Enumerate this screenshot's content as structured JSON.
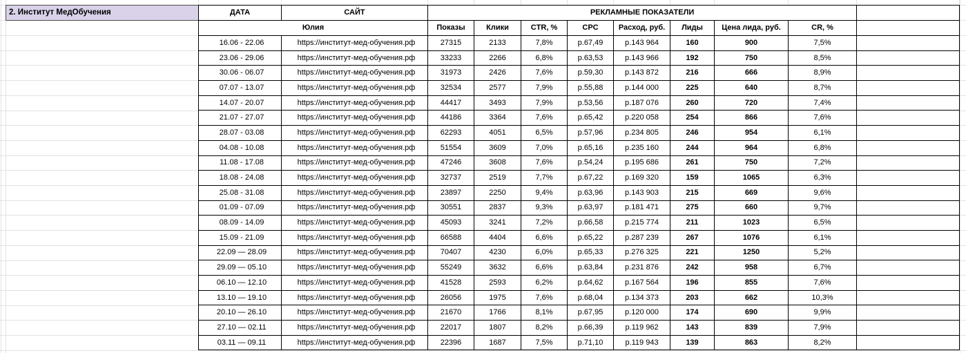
{
  "title_cell": "2. Институт МедОбучения",
  "colors": {
    "accent_purple": "#d9d2e9",
    "header_gray": "#efefef",
    "highlight_green": "#d9ead3",
    "gridline": "#e2e2e2",
    "table_border": "#000000"
  },
  "table": {
    "header_row1": {
      "date": "ДАТА",
      "site": "САЙТ",
      "metrics_group": "РЕКЛАМНЫЕ ПОКАЗАТЕЛИ"
    },
    "header_row2": {
      "manager": "Юлия",
      "columns": [
        "Показы",
        "Клики",
        "CTR, %",
        "CPC",
        "Расход, руб.",
        "Лиды",
        "Цена лида, руб.",
        "CR, %"
      ]
    },
    "rows": [
      {
        "date": "16.06 - 22.06",
        "site": "https://институт-мед-обучения.рф",
        "impressions": "27315",
        "clicks": "2133",
        "ctr": "7,8%",
        "cpc": "р.67,49",
        "spend": "р.143 964",
        "leads": "160",
        "lead_price": "900",
        "cr": "7,5%"
      },
      {
        "date": "23.06 - 29.06",
        "site": "https://институт-мед-обучения.рф",
        "impressions": "33233",
        "clicks": "2266",
        "ctr": "6,8%",
        "cpc": "р.63,53",
        "spend": "р.143 966",
        "leads": "192",
        "lead_price": "750",
        "cr": "8,5%"
      },
      {
        "date": "30.06 - 06.07",
        "site": "https://институт-мед-обучения.рф",
        "impressions": "31973",
        "clicks": "2426",
        "ctr": "7,6%",
        "cpc": "р.59,30",
        "spend": "р.143 872",
        "leads": "216",
        "lead_price": "666",
        "cr": "8,9%"
      },
      {
        "date": "07.07 - 13.07",
        "site": "https://институт-мед-обучения.рф",
        "impressions": "32534",
        "clicks": "2577",
        "ctr": "7,9%",
        "cpc": "р.55,88",
        "spend": "р.144 000",
        "leads": "225",
        "lead_price": "640",
        "cr": "8,7%"
      },
      {
        "date": "14.07 - 20.07",
        "site": "https://институт-мед-обучения.рф",
        "impressions": "44417",
        "clicks": "3493",
        "ctr": "7,9%",
        "cpc": "р.53,56",
        "spend": "р.187 076",
        "leads": "260",
        "lead_price": "720",
        "cr": "7,4%"
      },
      {
        "date": "21.07 - 27.07",
        "site": "https://институт-мед-обучения.рф",
        "impressions": "44186",
        "clicks": "3364",
        "ctr": "7,6%",
        "cpc": "р.65,42",
        "spend": "р.220 058",
        "leads": "254",
        "lead_price": "866",
        "cr": "7,6%"
      },
      {
        "date": "28.07 - 03.08",
        "site": "https://институт-мед-обучения.рф",
        "impressions": "62293",
        "clicks": "4051",
        "ctr": "6,5%",
        "cpc": "р.57,96",
        "spend": "р.234 805",
        "leads": "246",
        "lead_price": "954",
        "cr": "6,1%"
      },
      {
        "date": "04.08 - 10.08",
        "site": "https://институт-мед-обучения.рф",
        "impressions": "51554",
        "clicks": "3609",
        "ctr": "7,0%",
        "cpc": "р.65,16",
        "spend": "р.235 160",
        "leads": "244",
        "lead_price": "964",
        "cr": "6,8%"
      },
      {
        "date": "11.08 - 17.08",
        "site": "https://институт-мед-обучения.рф",
        "impressions": "47246",
        "clicks": "3608",
        "ctr": "7,6%",
        "cpc": "р.54,24",
        "spend": "р.195 686",
        "leads": "261",
        "lead_price": "750",
        "cr": "7,2%"
      },
      {
        "date": "18.08 - 24.08",
        "site": "https://институт-мед-обучения.рф",
        "impressions": "32737",
        "clicks": "2519",
        "ctr": "7,7%",
        "cpc": "р.67,22",
        "spend": "р.169 320",
        "leads": "159",
        "lead_price": "1065",
        "cr": "6,3%"
      },
      {
        "date": "25.08 - 31.08",
        "site": "https://институт-мед-обучения.рф",
        "impressions": "23897",
        "clicks": "2250",
        "ctr": "9,4%",
        "cpc": "р.63,96",
        "spend": "р.143 903",
        "leads": "215",
        "lead_price": "669",
        "cr": "9,6%"
      },
      {
        "date": "01.09 - 07.09",
        "site": "https://институт-мед-обучения.рф",
        "impressions": "30551",
        "clicks": "2837",
        "ctr": "9,3%",
        "cpc": "р.63,97",
        "spend": "р.181 471",
        "leads": "275",
        "lead_price": "660",
        "cr": "9,7%"
      },
      {
        "date": "08.09 - 14.09",
        "site": "https://институт-мед-обучения.рф",
        "impressions": "45093",
        "clicks": "3241",
        "ctr": "7,2%",
        "cpc": "р.66,58",
        "spend": "р.215 774",
        "leads": "211",
        "lead_price": "1023",
        "cr": "6,5%"
      },
      {
        "date": "15.09 - 21.09",
        "site": "https://институт-мед-обучения.рф",
        "impressions": "66588",
        "clicks": "4404",
        "ctr": "6,6%",
        "cpc": "р.65,22",
        "spend": "р.287 239",
        "leads": "267",
        "lead_price": "1076",
        "cr": "6,1%"
      },
      {
        "date": "22.09 — 28.09",
        "site": "https://институт-мед-обучения.рф",
        "impressions": "70407",
        "clicks": "4230",
        "ctr": "6,0%",
        "cpc": "р.65,33",
        "spend": "р.276 325",
        "leads": "221",
        "lead_price": "1250",
        "cr": "5,2%"
      },
      {
        "date": "29.09 — 05.10",
        "site": "https://институт-мед-обучения.рф",
        "impressions": "55249",
        "clicks": "3632",
        "ctr": "6,6%",
        "cpc": "р.63,84",
        "spend": "р.231 876",
        "leads": "242",
        "lead_price": "958",
        "cr": "6,7%"
      },
      {
        "date": "06.10 — 12.10",
        "site": "https://институт-мед-обучения.рф",
        "impressions": "41528",
        "clicks": "2593",
        "ctr": "6,2%",
        "cpc": "р.64,62",
        "spend": "р.167 564",
        "leads": "196",
        "lead_price": "855",
        "cr": "7,6%"
      },
      {
        "date": "13.10 — 19.10",
        "site": "https://институт-мед-обучения.рф",
        "impressions": "26056",
        "clicks": "1975",
        "ctr": "7,6%",
        "cpc": "р.68,04",
        "spend": "р.134 373",
        "leads": "203",
        "lead_price": "662",
        "cr": "10,3%"
      },
      {
        "date": "20.10 — 26.10",
        "site": "https://институт-мед-обучения.рф",
        "impressions": "21670",
        "clicks": "1766",
        "ctr": "8,1%",
        "cpc": "р.67,95",
        "spend": "р.120 000",
        "leads": "174",
        "lead_price": "690",
        "cr": "9,9%"
      },
      {
        "date": "27.10 — 02.11",
        "site": "https://институт-мед-обучения.рф",
        "impressions": "22017",
        "clicks": "1807",
        "ctr": "8,2%",
        "cpc": "р.66,39",
        "spend": "р.119 962",
        "leads": "143",
        "lead_price": "839",
        "cr": "7,9%"
      },
      {
        "date": "03.11 — 09.11",
        "site": "https://институт-мед-обучения.рф",
        "impressions": "22396",
        "clicks": "1687",
        "ctr": "7,5%",
        "cpc": "р.71,10",
        "spend": "р.119 943",
        "leads": "139",
        "lead_price": "863",
        "cr": "8,2%"
      }
    ]
  }
}
